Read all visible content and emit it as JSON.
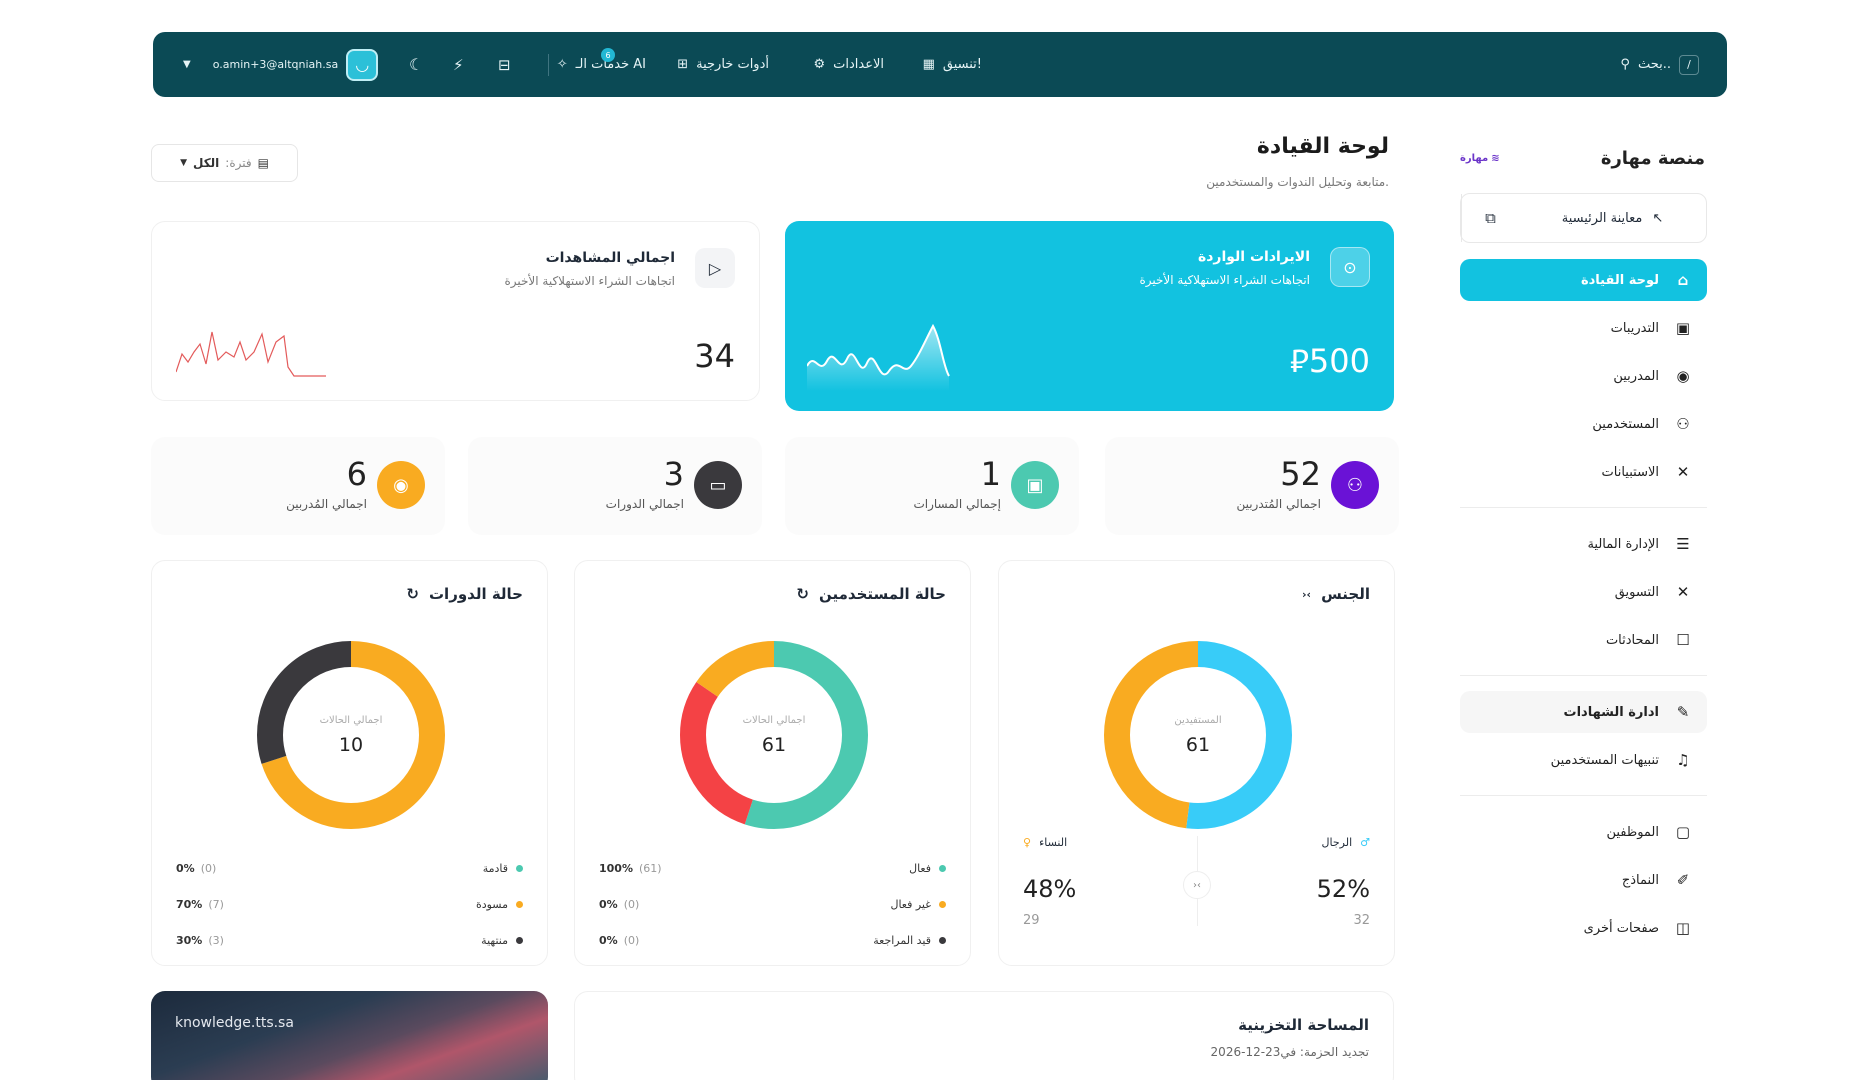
{
  "topbar": {
    "search_label": "بحث..",
    "search_key": "/",
    "menu": [
      {
        "label": "تنسيق!",
        "icon": "layout-icon"
      },
      {
        "label": "الاعدادات",
        "icon": "gear-icon"
      },
      {
        "label": "أدوات خارجية",
        "icon": "grid-icon"
      },
      {
        "label": "خدمات الـ AI",
        "icon": "sparkle-icon"
      }
    ],
    "notification_count": "6",
    "user_email": "o.amin+3@altqniah.sa"
  },
  "sidebar": {
    "brand_name": "منصة مهارة",
    "brand_mark": "مهارة",
    "preview_label": "معاينة الرئيسية",
    "items": [
      {
        "label": "لوحة القيادة",
        "icon": "dashboard-icon"
      },
      {
        "label": "التدريبات",
        "icon": "video-icon"
      },
      {
        "label": "المدربين",
        "icon": "user-circle-icon"
      },
      {
        "label": "المستخدمين",
        "icon": "users-icon"
      },
      {
        "label": "الاستبيانات",
        "icon": "x-icon"
      },
      {
        "label": "الإدارة المالية",
        "icon": "document-icon"
      },
      {
        "label": "التسويق",
        "icon": "x-icon"
      },
      {
        "label": "المحادثات",
        "icon": "chat-icon"
      },
      {
        "label": "ادارة الشهادات",
        "icon": "certificate-icon"
      },
      {
        "label": "تنبيهات المستخدمين",
        "icon": "bell-icon"
      },
      {
        "label": "الموظفين",
        "icon": "user-square-icon"
      },
      {
        "label": "النماذج",
        "icon": "form-icon"
      },
      {
        "label": "صفحات أخرى",
        "icon": "pages-icon"
      }
    ]
  },
  "header": {
    "title": "لوحة القيادة",
    "subtitle": "متابعة وتحليل الندوات والمستخدمين.",
    "filter_label": "فترة:",
    "filter_value": "الكل"
  },
  "revenue": {
    "title": "الايرادات الواردة",
    "subtitle": "اتجاهات الشراء الاستهلاكية الأخيرة",
    "value": "500",
    "currency": "⃁"
  },
  "views": {
    "title": "اجمالي المشاهدات",
    "subtitle": "اتجاهات الشراء الاستهلاكية الأخيرة",
    "value": "34"
  },
  "stats": [
    {
      "value": "52",
      "label": "اجمالي المُتدربين",
      "color": "#6a12d6"
    },
    {
      "value": "1",
      "label": "إجمالي المسارات",
      "color": "#4cc9b0"
    },
    {
      "value": "3",
      "label": "اجمالي الدورات",
      "color": "#3a393d"
    },
    {
      "value": "6",
      "label": "اجمالي المُدربين",
      "color": "#f9ab21"
    }
  ],
  "gender": {
    "title": "الجنس",
    "center_label": "المستفيدين",
    "center_value": "61",
    "men_label": "الرجال",
    "men_percent": "52%",
    "men_count": "32",
    "women_label": "النساء",
    "women_percent": "48%",
    "women_count": "29",
    "colors": {
      "men": "#38ccf8",
      "women": "#f9ab21"
    }
  },
  "users_status": {
    "title": "حالة المستخدمين",
    "center_label": "اجمالي الحالات",
    "center_value": "61",
    "legend": [
      {
        "label": "فعال",
        "percent": "100%",
        "count": "(61)",
        "color": "#4cc9b0"
      },
      {
        "label": "غير فعال",
        "percent": "0%",
        "count": "(0)",
        "color": "#f9ab21"
      },
      {
        "label": "قيد المراجعة",
        "percent": "0%",
        "count": "(0)",
        "color": "#3a393d"
      }
    ]
  },
  "courses_status": {
    "title": "حالة الدورات",
    "center_label": "اجمالي الحالات",
    "center_value": "10",
    "legend": [
      {
        "label": "قادمة",
        "percent": "0%",
        "count": "(0)",
        "color": "#4cc9b0"
      },
      {
        "label": "مسودة",
        "percent": "70%",
        "count": "(7)",
        "color": "#f9ab21"
      },
      {
        "label": "منتهية",
        "percent": "30%",
        "count": "(3)",
        "color": "#3a393d"
      }
    ]
  },
  "image_card": {
    "domain": "knowledge.tts.sa"
  },
  "storage": {
    "title": "المساحة التخزينية",
    "renewal": "تجديد الحزمة: في23-12-2026"
  }
}
